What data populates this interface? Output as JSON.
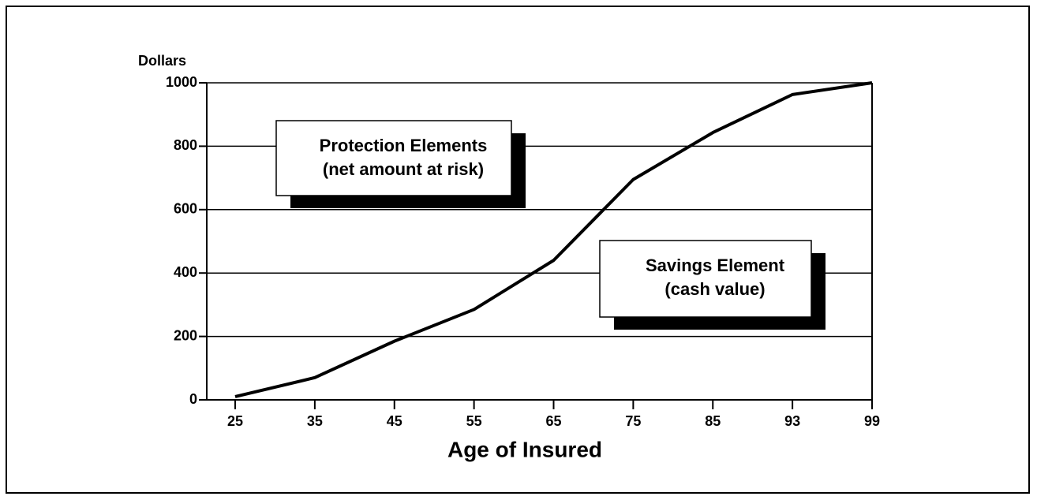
{
  "chart_data": {
    "type": "line",
    "y_label": "Dollars",
    "x_label": "Age of Insured",
    "categories": [
      "25",
      "35",
      "45",
      "55",
      "65",
      "75",
      "85",
      "93",
      "99"
    ],
    "series": [
      {
        "name": null,
        "color": "#000000",
        "values": [
          10,
          70,
          185,
          285,
          440,
          695,
          843,
          963,
          1000
        ]
      }
    ],
    "ylim": [
      0,
      1000
    ],
    "yticks": [
      0,
      200,
      400,
      600,
      800,
      1000
    ],
    "grid": true,
    "annotations": [
      {
        "lines": [
          "Protection Elements",
          "(net amount at risk)"
        ]
      },
      {
        "lines": [
          "Savings Element",
          "(cash value)"
        ]
      }
    ]
  }
}
